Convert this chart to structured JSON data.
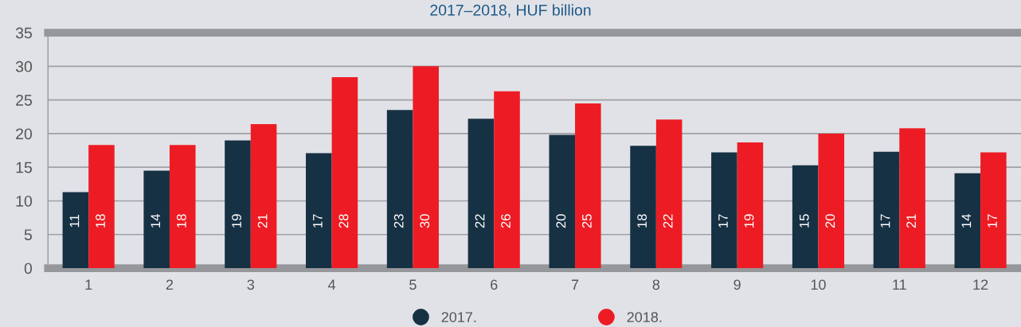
{
  "chart_data": {
    "type": "bar",
    "subtitle": "2017–2018, HUF billion",
    "categories": [
      "1",
      "2",
      "3",
      "4",
      "5",
      "6",
      "7",
      "8",
      "9",
      "10",
      "11",
      "12"
    ],
    "series": [
      {
        "name": "2017.",
        "color": "#173144",
        "values": [
          11.3,
          14.5,
          19.0,
          17.1,
          23.5,
          22.2,
          19.8,
          18.2,
          17.2,
          15.3,
          17.3,
          14.1
        ],
        "value_labels": [
          "11",
          "14",
          "19",
          "17",
          "23",
          "22",
          "20",
          "18",
          "17",
          "15",
          "17",
          "14"
        ]
      },
      {
        "name": "2018.",
        "color": "#ed1c24",
        "values": [
          18.3,
          18.3,
          21.4,
          28.4,
          30.0,
          26.3,
          24.5,
          22.1,
          18.7,
          20.0,
          20.8,
          17.2
        ],
        "value_labels": [
          "18",
          "18",
          "21",
          "28",
          "30",
          "26",
          "25",
          "22",
          "19",
          "20",
          "21",
          "17"
        ]
      }
    ],
    "ylim": [
      0,
      35
    ],
    "yticks": [
      0,
      5,
      10,
      15,
      20,
      25,
      30,
      35
    ],
    "grid": "y",
    "legend": "bottom"
  }
}
